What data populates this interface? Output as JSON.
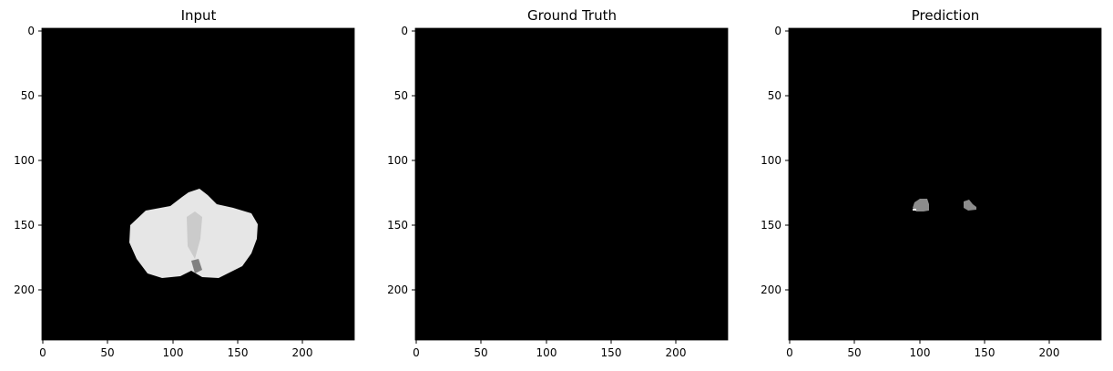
{
  "figure": {
    "panels": [
      {
        "title": "Input",
        "image": "grayscale MRI slice: bright brain-tissue blob on black background",
        "x_ticks": [
          "0",
          "50",
          "100",
          "150",
          "200"
        ],
        "y_ticks": [
          "0",
          "50",
          "100",
          "150",
          "200"
        ]
      },
      {
        "title": "Ground Truth",
        "image": "all-black segmentation mask",
        "x_ticks": [
          "0",
          "50",
          "100",
          "150",
          "200"
        ],
        "y_ticks": [
          "0",
          "50",
          "100",
          "150",
          "200"
        ]
      },
      {
        "title": "Prediction",
        "image": "black mask with two small gray predicted regions",
        "x_ticks": [
          "0",
          "50",
          "100",
          "150",
          "200"
        ],
        "y_ticks": [
          "0",
          "50",
          "100",
          "150",
          "200"
        ]
      }
    ],
    "image_extent": [
      0,
      240
    ],
    "colors": {
      "background": "#ffffff",
      "image_background": "#000000",
      "tissue": "#e6e6e6",
      "prediction": "#8c8c8c"
    }
  }
}
